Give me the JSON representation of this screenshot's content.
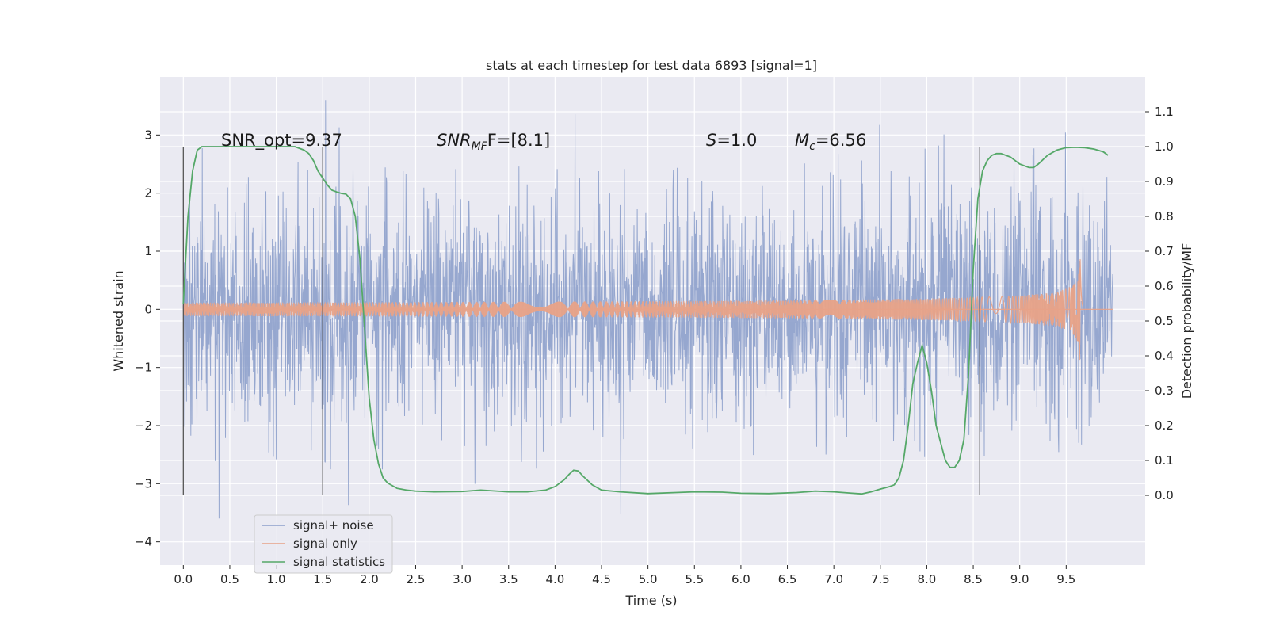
{
  "chart_data": {
    "type": "line",
    "title": "stats at each timestep for test data 6893 [signal=1]",
    "xlabel": "Time (s)",
    "ylabel": "Whitened strain",
    "ylabel_right": "Detection probability/MF",
    "xlim": [
      -0.25,
      10.35
    ],
    "ylim": [
      -4.4,
      4.0
    ],
    "ylim_right": [
      -0.2,
      1.2
    ],
    "xticks": [
      0.0,
      0.5,
      1.0,
      1.5,
      2.0,
      2.5,
      3.0,
      3.5,
      4.0,
      4.5,
      5.0,
      5.5,
      6.0,
      6.5,
      7.0,
      7.5,
      8.0,
      8.5,
      9.0,
      9.5
    ],
    "xtick_labels": [
      "0.0",
      "0.5",
      "1.0",
      "1.5",
      "2.0",
      "2.5",
      "3.0",
      "3.5",
      "4.0",
      "4.5",
      "5.0",
      "5.5",
      "6.0",
      "6.5",
      "7.0",
      "7.5",
      "8.0",
      "8.5",
      "9.0",
      "9.5"
    ],
    "yticks": [
      -4,
      -3,
      -2,
      -1,
      0,
      1,
      2,
      3
    ],
    "ytick_labels": [
      "−4",
      "−3",
      "−2",
      "−1",
      "0",
      "1",
      "2",
      "3"
    ],
    "yticks_right": [
      0.0,
      0.1,
      0.2,
      0.3,
      0.4,
      0.5,
      0.6,
      0.7,
      0.8,
      0.9,
      1.0,
      1.1
    ],
    "ytick_labels_right": [
      "0.0",
      "0.1",
      "0.2",
      "0.3",
      "0.4",
      "0.5",
      "0.6",
      "0.7",
      "0.8",
      "0.9",
      "1.0",
      "1.1"
    ],
    "grid": true,
    "legend_placement": "lower-left",
    "annotations": {
      "snr_opt": "SNR_opt=9.37",
      "snr_mf_main": "SNR",
      "snr_mf_sub": "MF",
      "snr_mf_suffix": "F=[8.1]",
      "s_main": "S",
      "s_suffix": "=1.0",
      "mc_main": "M",
      "mc_sub": "c",
      "mc_suffix": "=6.56"
    },
    "vertical_lines_x": [
      0.0,
      1.5,
      8.57
    ],
    "vertical_lines_yrange": [
      -3.2,
      2.8
    ],
    "series": [
      {
        "name": "signal+ noise",
        "color": "#8da0cb",
        "kind": "noise",
        "x_range": [
          0.0,
          10.0
        ],
        "envelope_typical": 1.4,
        "peak_max": 3.6,
        "peak_min": -3.6
      },
      {
        "name": "signal only",
        "color": "#e8a287",
        "kind": "chirp",
        "x_range": [
          0.0,
          9.68
        ],
        "amplitude_at_merger": 0.95,
        "merger_time": 9.65
      },
      {
        "name": "signal statistics",
        "color": "#55a868",
        "kind": "line",
        "axis": "right",
        "x": [
          0.0,
          0.05,
          0.1,
          0.15,
          0.2,
          0.3,
          0.5,
          0.8,
          1.0,
          1.2,
          1.3,
          1.35,
          1.4,
          1.45,
          1.5,
          1.55,
          1.6,
          1.65,
          1.7,
          1.75,
          1.8,
          1.85,
          1.9,
          1.95,
          2.0,
          2.05,
          2.1,
          2.15,
          2.2,
          2.3,
          2.4,
          2.5,
          2.7,
          3.0,
          3.2,
          3.5,
          3.7,
          3.9,
          4.0,
          4.1,
          4.15,
          4.2,
          4.25,
          4.3,
          4.4,
          4.5,
          4.7,
          5.0,
          5.3,
          5.5,
          5.8,
          6.0,
          6.3,
          6.6,
          6.8,
          7.0,
          7.2,
          7.3,
          7.4,
          7.5,
          7.6,
          7.65,
          7.7,
          7.75,
          7.8,
          7.85,
          7.9,
          7.95,
          8.0,
          8.05,
          8.1,
          8.15,
          8.2,
          8.25,
          8.3,
          8.35,
          8.4,
          8.45,
          8.5,
          8.55,
          8.6,
          8.65,
          8.7,
          8.75,
          8.8,
          8.9,
          9.0,
          9.1,
          9.15,
          9.2,
          9.3,
          9.4,
          9.5,
          9.6,
          9.7,
          9.8,
          9.9,
          9.95
        ],
        "values": [
          0.55,
          0.8,
          0.93,
          0.99,
          1.0,
          1.0,
          1.0,
          1.0,
          1.0,
          1.0,
          0.99,
          0.98,
          0.96,
          0.93,
          0.91,
          0.89,
          0.875,
          0.87,
          0.866,
          0.864,
          0.85,
          0.8,
          0.68,
          0.48,
          0.28,
          0.16,
          0.09,
          0.05,
          0.035,
          0.02,
          0.015,
          0.012,
          0.01,
          0.011,
          0.015,
          0.01,
          0.01,
          0.015,
          0.025,
          0.045,
          0.06,
          0.072,
          0.07,
          0.055,
          0.03,
          0.015,
          0.01,
          0.005,
          0.008,
          0.01,
          0.009,
          0.006,
          0.005,
          0.008,
          0.012,
          0.01,
          0.006,
          0.004,
          0.01,
          0.018,
          0.025,
          0.03,
          0.05,
          0.1,
          0.2,
          0.32,
          0.38,
          0.43,
          0.38,
          0.3,
          0.2,
          0.15,
          0.1,
          0.08,
          0.08,
          0.1,
          0.16,
          0.35,
          0.65,
          0.85,
          0.93,
          0.96,
          0.975,
          0.98,
          0.98,
          0.97,
          0.95,
          0.94,
          0.94,
          0.95,
          0.975,
          0.99,
          0.997,
          0.998,
          0.997,
          0.993,
          0.985,
          0.975
        ]
      }
    ]
  }
}
